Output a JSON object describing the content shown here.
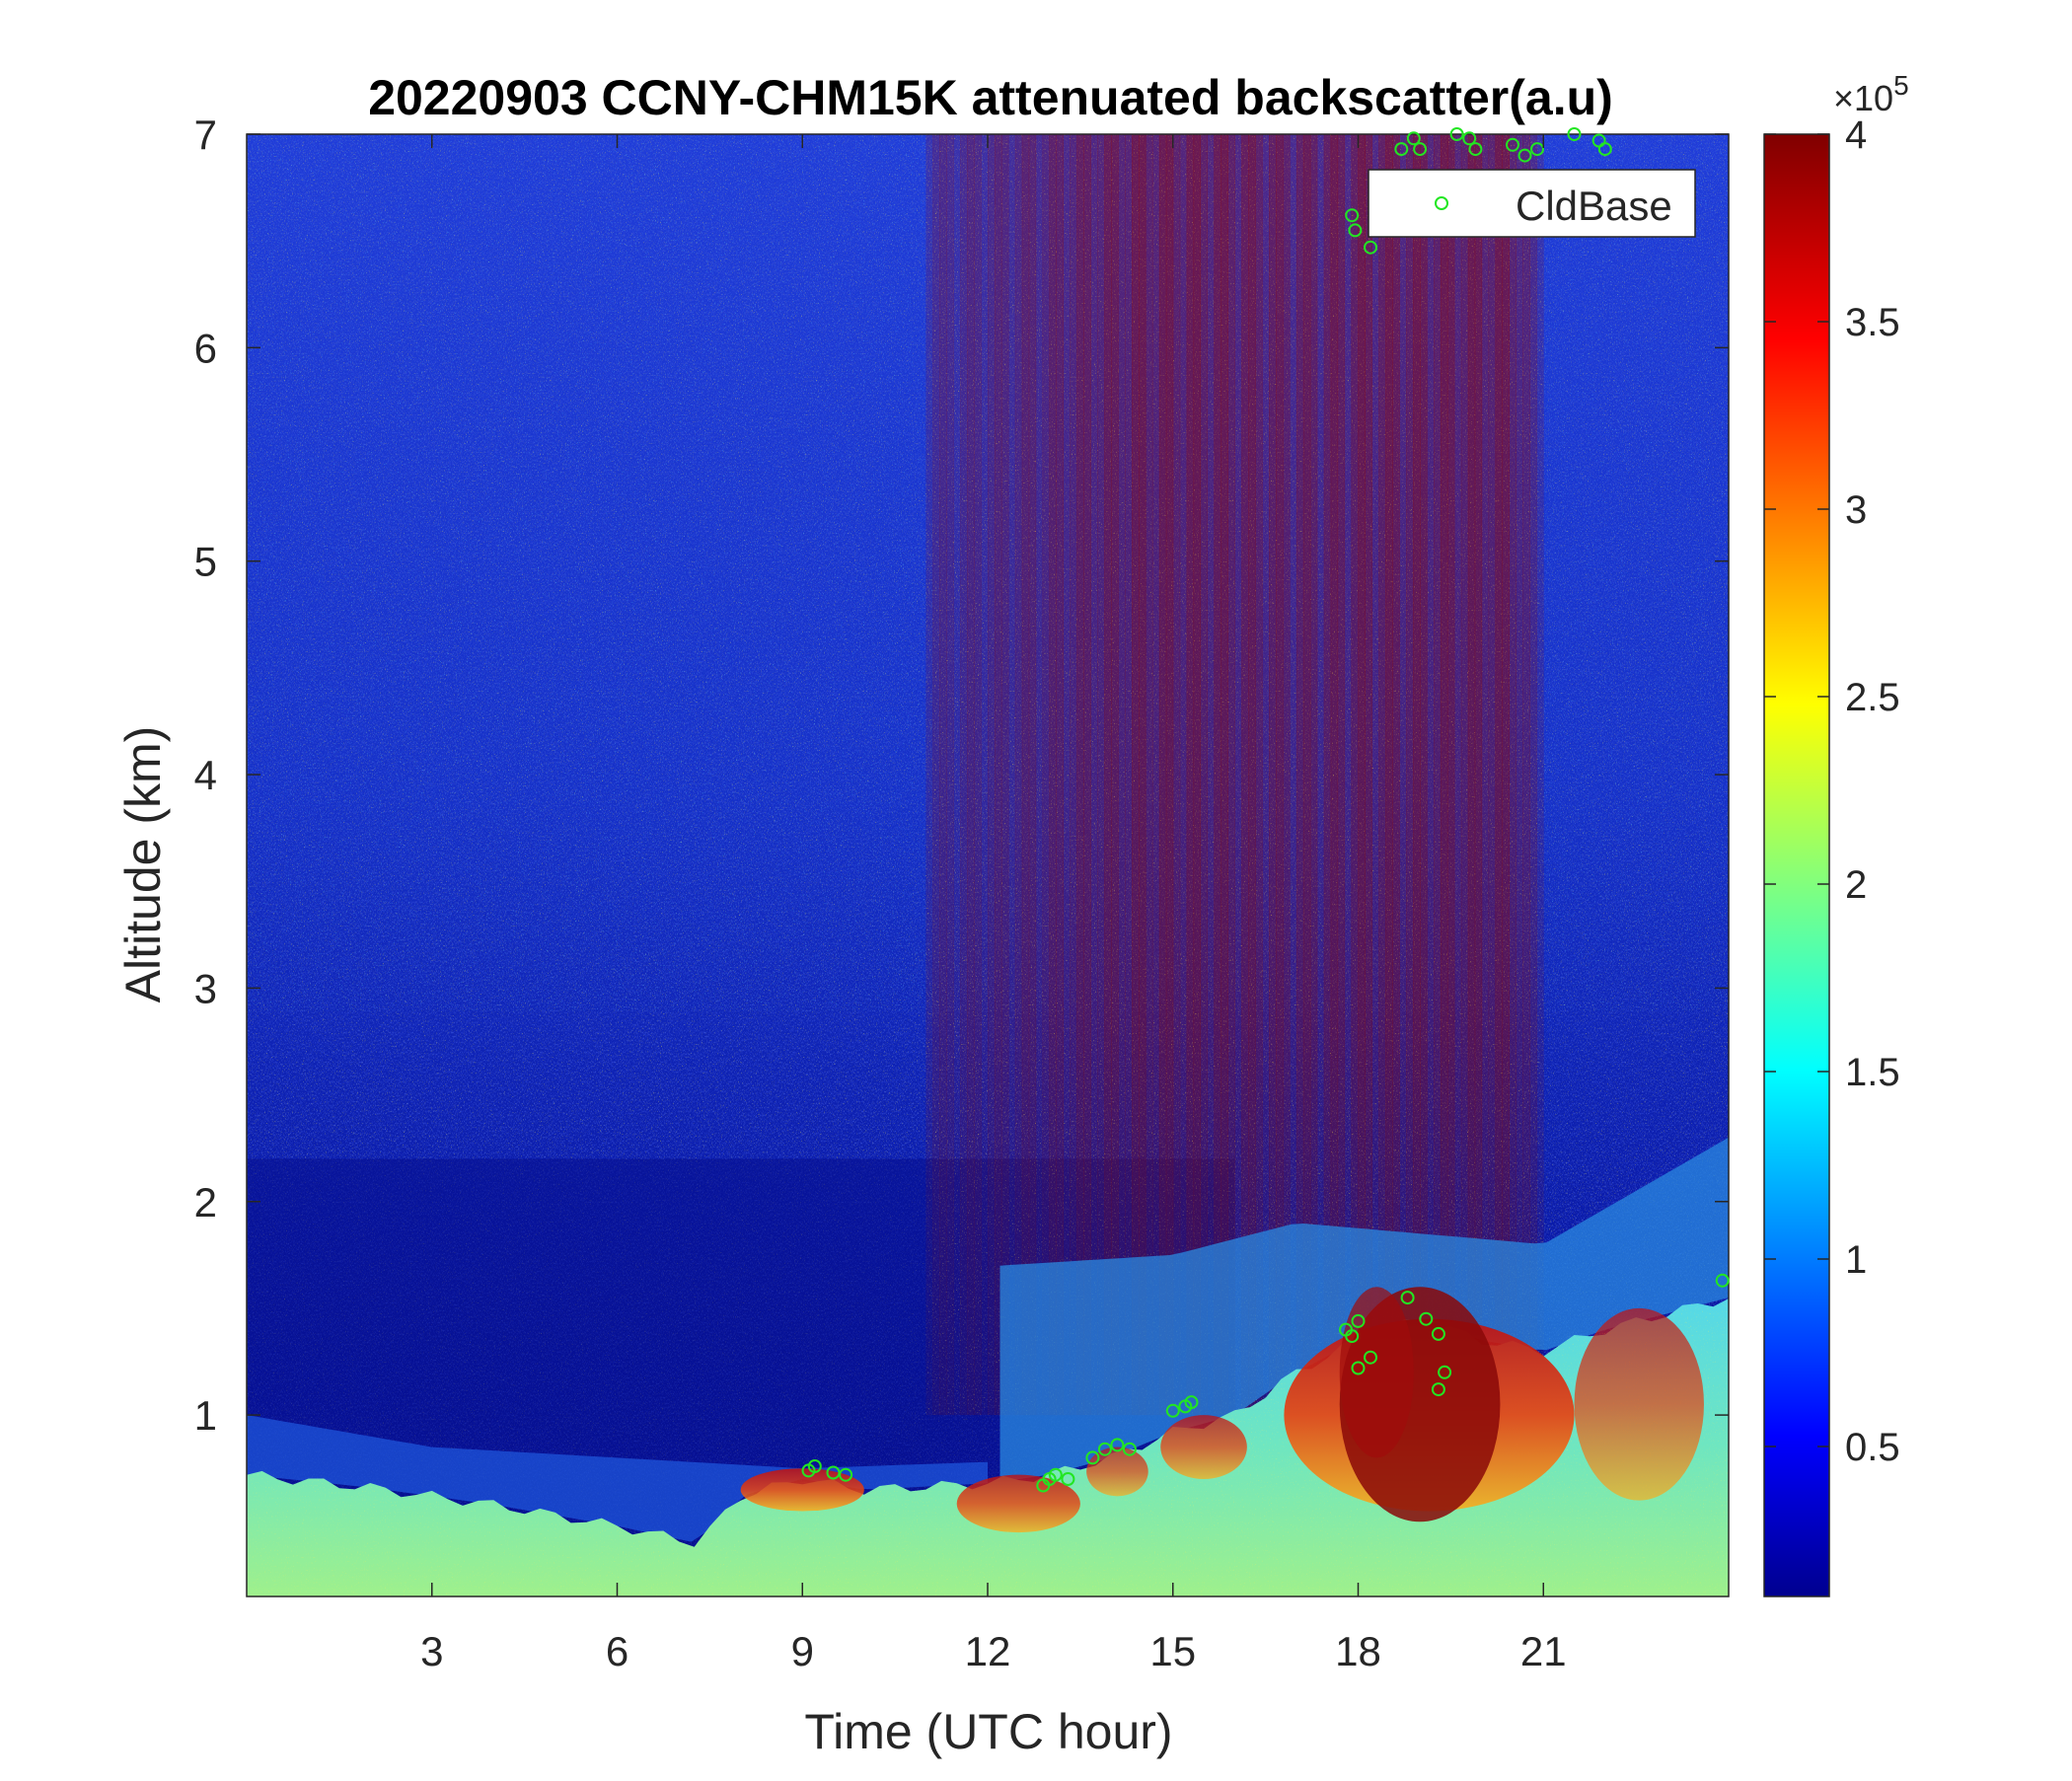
{
  "chart_data": {
    "type": "heatmap",
    "title": "20220903 CCNY-CHM15K attenuated backscatter(a.u)",
    "xlabel": "Time (UTC hour)",
    "ylabel": "Altitude (km)",
    "xlim": [
      0,
      24
    ],
    "ylim": [
      0.15,
      7
    ],
    "xticks": [
      3,
      6,
      9,
      12,
      15,
      18,
      21
    ],
    "yticks": [
      1,
      2,
      3,
      4,
      5,
      6,
      7
    ],
    "colormap": "jet",
    "colorbar": {
      "range": [
        0.1,
        4
      ],
      "ticks": [
        0.5,
        1,
        1.5,
        2,
        2.5,
        3,
        3.5,
        4
      ],
      "exponent": "×10^5",
      "multiplier_label": "×10",
      "exponent_label": "5"
    },
    "legend": {
      "entries": [
        "CldBase"
      ],
      "placement": "top-right"
    },
    "colors": {
      "cldbase_marker": "#22e622"
    },
    "description_summary": "attenuated backscatter values (×10^5)",
    "mixed_layer_top_km": [
      [
        0,
        0.72
      ],
      [
        2,
        0.66
      ],
      [
        4,
        0.58
      ],
      [
        6,
        0.48
      ],
      [
        7.3,
        0.4
      ],
      [
        8,
        0.62
      ],
      [
        9,
        0.7
      ],
      [
        10,
        0.65
      ],
      [
        12,
        0.68
      ],
      [
        13,
        0.72
      ],
      [
        14,
        0.8
      ],
      [
        15,
        0.92
      ],
      [
        16,
        1.0
      ],
      [
        17,
        1.2
      ],
      [
        18,
        1.35
      ],
      [
        19,
        1.45
      ],
      [
        20,
        1.35
      ],
      [
        21,
        1.3
      ],
      [
        22,
        1.4
      ],
      [
        24,
        1.55
      ]
    ],
    "residual_layer_km": [
      [
        0,
        1.0
      ],
      [
        3,
        0.85
      ],
      [
        6,
        0.8
      ],
      [
        9,
        0.75
      ],
      [
        12,
        0.78
      ]
    ],
    "upper_aerosol_layer": {
      "x_range": [
        12.2,
        24
      ],
      "top_km": [
        [
          12.2,
          1.7
        ],
        [
          15,
          1.75
        ],
        [
          17,
          1.9
        ],
        [
          21,
          1.8
        ],
        [
          24,
          2.3
        ]
      ]
    },
    "high_signal_column": {
      "x_range": [
        11,
        21
      ],
      "intensity": [
        [
          11,
          0.5
        ],
        [
          14.5,
          1.0
        ],
        [
          15.6,
          1.0
        ],
        [
          17,
          0.9
        ],
        [
          18,
          1.0
        ],
        [
          20.5,
          1.0
        ],
        [
          21,
          0.3
        ]
      ]
    },
    "cldbase_points": [
      [
        9.1,
        0.74
      ],
      [
        9.2,
        0.76
      ],
      [
        9.5,
        0.73
      ],
      [
        9.7,
        0.72
      ],
      [
        12.9,
        0.67
      ],
      [
        13.0,
        0.7
      ],
      [
        13.1,
        0.72
      ],
      [
        13.3,
        0.7
      ],
      [
        13.7,
        0.8
      ],
      [
        13.9,
        0.84
      ],
      [
        14.1,
        0.86
      ],
      [
        14.3,
        0.84
      ],
      [
        15.0,
        1.02
      ],
      [
        15.2,
        1.04
      ],
      [
        15.3,
        1.06
      ],
      [
        17.8,
        1.4
      ],
      [
        17.9,
        1.37
      ],
      [
        18.0,
        1.44
      ],
      [
        18.0,
        1.22
      ],
      [
        18.2,
        1.27
      ],
      [
        18.8,
        1.55
      ],
      [
        19.1,
        1.45
      ],
      [
        19.3,
        1.38
      ],
      [
        19.3,
        1.12
      ],
      [
        19.4,
        1.2
      ],
      [
        23.9,
        1.63
      ],
      [
        17.9,
        6.62
      ],
      [
        17.95,
        6.55
      ],
      [
        18.2,
        6.47
      ],
      [
        18.7,
        6.93
      ],
      [
        18.9,
        6.98
      ],
      [
        19.0,
        6.93
      ],
      [
        19.6,
        7.0
      ],
      [
        19.8,
        6.98
      ],
      [
        19.9,
        6.93
      ],
      [
        20.5,
        6.95
      ],
      [
        20.7,
        6.9
      ],
      [
        20.9,
        6.93
      ],
      [
        21.5,
        7.0
      ],
      [
        21.9,
        6.97
      ],
      [
        22.0,
        6.93
      ]
    ]
  }
}
